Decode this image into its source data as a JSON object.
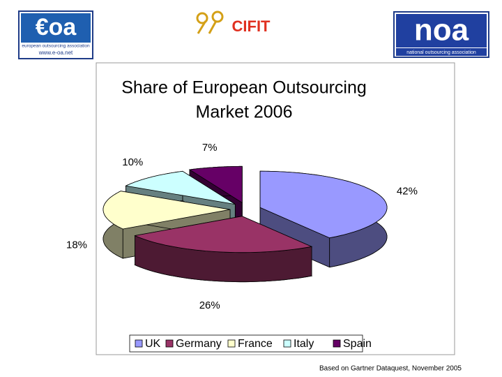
{
  "header": {
    "eoa_logo": "€oa",
    "eoa_name": "european outsourcing association",
    "eoa_url": "www.e-oa.net",
    "cifit_logo": "CIFIT",
    "noa_logo": "noa",
    "noa_name": "national outsourcing association"
  },
  "chart_data": {
    "type": "pie3d",
    "title": [
      "Share of European Outsourcing",
      "Market 2006"
    ],
    "categories": [
      "UK",
      "Germany",
      "France",
      "Italy",
      "Spain"
    ],
    "values": [
      42,
      26,
      18,
      10,
      7
    ],
    "value_labels": [
      "42%",
      "26%",
      "18%",
      "10%",
      "7%"
    ],
    "colors": [
      "#9999ff",
      "#993366",
      "#ffffcc",
      "#ccffff",
      "#660066"
    ],
    "legend": "bottom"
  },
  "footer": "Based on Gartner Dataquest, November 2005"
}
